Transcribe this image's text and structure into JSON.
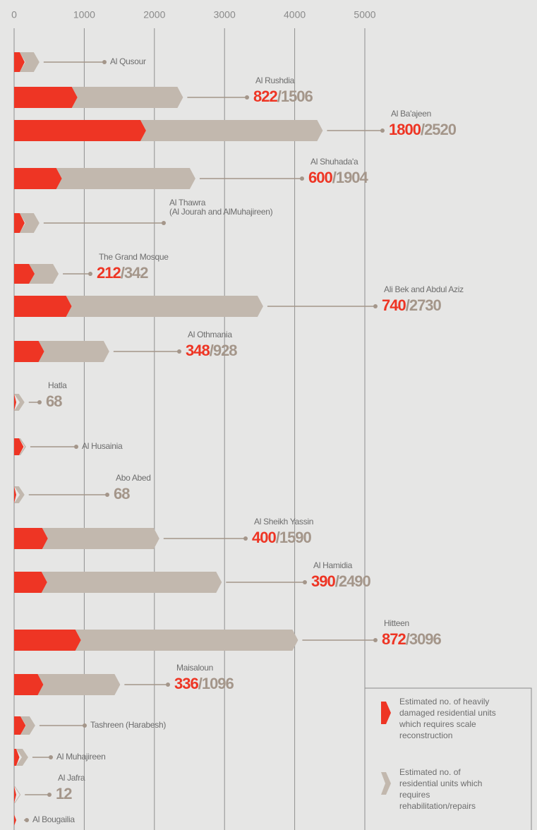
{
  "chart_data": {
    "type": "bar",
    "orientation": "horizontal",
    "stacked": true,
    "categories": [
      "Al Qusour",
      "Al Rushdia",
      "Al Ba'ajeen",
      "Al Shuhada'a",
      "Al Thawra (Al Jourah and AlMuhajireen)",
      "The Grand Mosque",
      "Ali Bek and Abdul Aziz",
      "Al Othmania",
      "Hatla",
      "Al Husainia",
      "Abo Abed",
      "Al Sheikh Yassin",
      "Al Hamidia",
      "Hitteen",
      "Maisaloun",
      "Tashreen (Harabesh)",
      "Al Muhajireen",
      "Al Jafra",
      "Al Bougailia"
    ],
    "series": [
      {
        "name": "Estimated no. of  heavily damaged residential units which requires scale reconstruction",
        "color": "#ee3524",
        "values": [
          80,
          822,
          1800,
          600,
          80,
          212,
          740,
          348,
          0,
          70,
          0,
          400,
          390,
          872,
          336,
          90,
          30,
          0,
          0
        ]
      },
      {
        "name": "Estimated no. of residential units which requires rehabilitation/repairs",
        "color": "#c2b8ae",
        "values": [
          200,
          1506,
          2520,
          1904,
          200,
          342,
          2730,
          928,
          68,
          20,
          68,
          1590,
          2490,
          3096,
          1096,
          130,
          90,
          12,
          0
        ],
        "value_labels": [
          null,
          "/1506",
          "/2520",
          "/1904",
          null,
          "/342",
          "/2730",
          "/928",
          "68",
          null,
          "68",
          "/1590",
          "/2490",
          "/3096",
          "/1096",
          null,
          null,
          "12",
          null
        ]
      }
    ],
    "xlim": [
      0,
      5000
    ],
    "xticks": [
      0,
      1000,
      2000,
      3000,
      4000,
      5000
    ],
    "grid": true,
    "legend": "bottom-right"
  }
}
